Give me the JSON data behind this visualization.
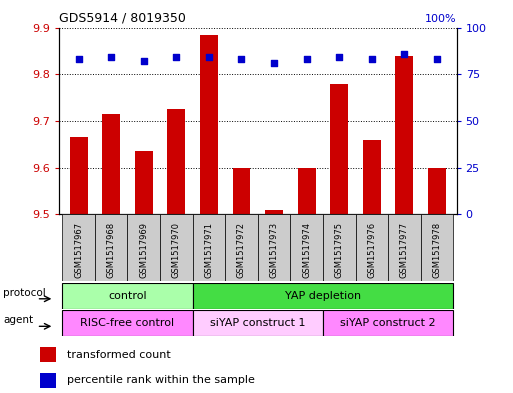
{
  "title": "GDS5914 / 8019350",
  "samples": [
    "GSM1517967",
    "GSM1517968",
    "GSM1517969",
    "GSM1517970",
    "GSM1517971",
    "GSM1517972",
    "GSM1517973",
    "GSM1517974",
    "GSM1517975",
    "GSM1517976",
    "GSM1517977",
    "GSM1517978"
  ],
  "bar_values": [
    9.665,
    9.715,
    9.635,
    9.725,
    9.885,
    9.6,
    9.51,
    9.6,
    9.78,
    9.66,
    9.84,
    9.6
  ],
  "percentile_values": [
    83,
    84,
    82,
    84,
    84,
    83,
    81,
    83,
    84,
    83,
    86,
    83
  ],
  "ylim_left": [
    9.5,
    9.9
  ],
  "ylim_right": [
    0,
    100
  ],
  "yticks_left": [
    9.5,
    9.6,
    9.7,
    9.8,
    9.9
  ],
  "yticks_right": [
    0,
    25,
    50,
    75,
    100
  ],
  "bar_color": "#cc0000",
  "dot_color": "#0000cc",
  "bar_width": 0.55,
  "protocol_labels": [
    "control",
    "YAP depletion"
  ],
  "protocol_color_control": "#aaffaa",
  "protocol_color_yap": "#44dd44",
  "agent_labels": [
    "RISC-free control",
    "siYAP construct 1",
    "siYAP construct 2"
  ],
  "agent_color_risc": "#ff88ff",
  "agent_color_siyap1": "#ffccff",
  "agent_color_siyap2": "#ff88ff",
  "legend_bar_color": "#cc0000",
  "legend_dot_color": "#0000cc",
  "legend_label_bar": "transformed count",
  "legend_label_dot": "percentile rank within the sample",
  "bg_color": "#ffffff",
  "tick_label_color_left": "#cc0000",
  "tick_label_color_right": "#0000cc",
  "sample_bg_color": "#cccccc",
  "right_axis_top_label": "100%"
}
